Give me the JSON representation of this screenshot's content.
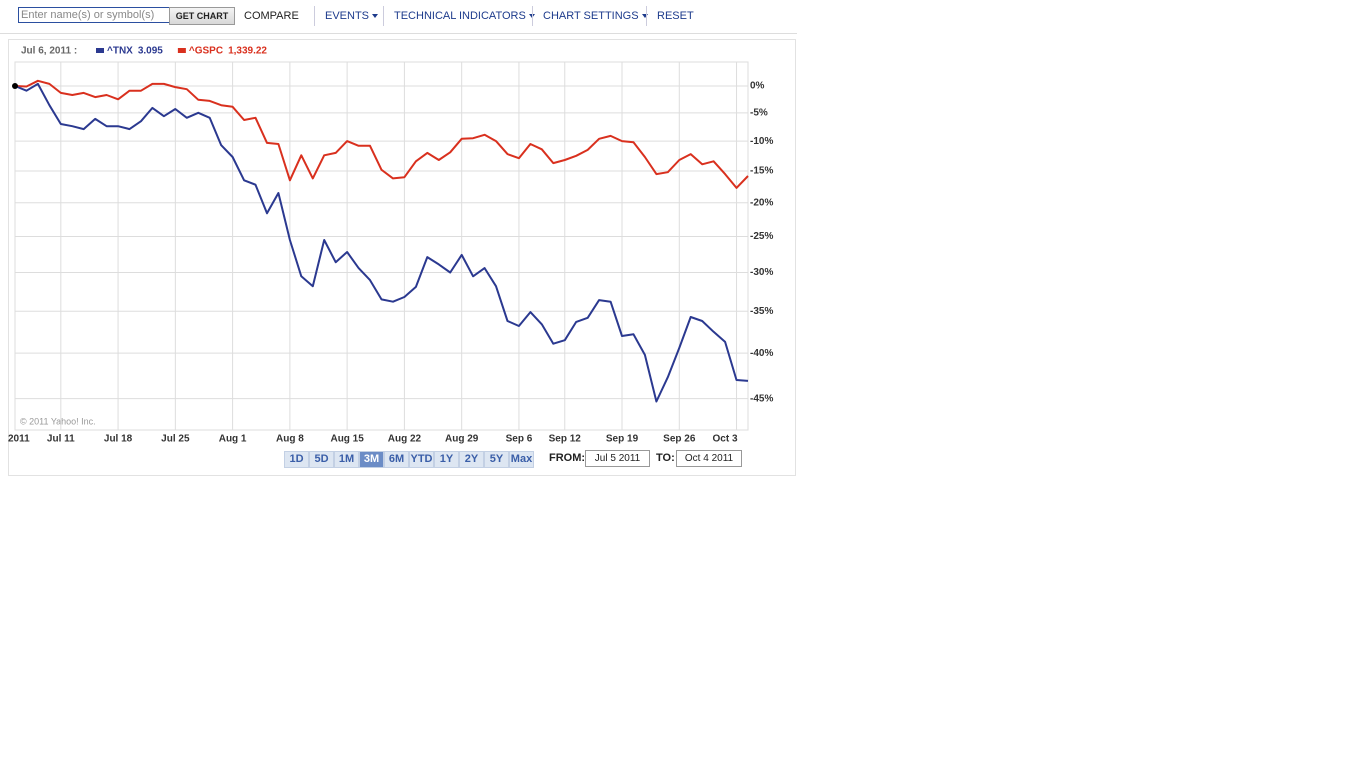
{
  "toolbar": {
    "search_placeholder": "Enter name(s) or symbol(s)",
    "get_chart": "GET CHART",
    "compare": "COMPARE",
    "menus": [
      "EVENTS",
      "TECHNICAL INDICATORS",
      "CHART SETTINGS"
    ],
    "reset": "RESET"
  },
  "chart_data": {
    "type": "line",
    "legend_date": "Jul 6, 2011 :",
    "categories": [
      "2011",
      null,
      null,
      null,
      "Jul 11",
      null,
      null,
      null,
      null,
      "Jul 18",
      null,
      null,
      null,
      null,
      "Jul 25",
      null,
      null,
      null,
      null,
      "Aug 1",
      null,
      null,
      null,
      null,
      "Aug 8",
      null,
      null,
      null,
      null,
      "Aug 15",
      null,
      null,
      null,
      null,
      "Aug 22",
      null,
      null,
      null,
      null,
      "Aug 29",
      null,
      null,
      null,
      null,
      "Sep 6",
      null,
      null,
      null,
      "Sep 12",
      null,
      null,
      null,
      null,
      "Sep 19",
      null,
      null,
      null,
      null,
      "Sep 26",
      null,
      null,
      null,
      null,
      "Oct 3",
      null
    ],
    "series": [
      {
        "name": "^TNX",
        "value_label": "3.095",
        "color": "#2b3990",
        "values": [
          0,
          -0.9,
          0.4,
          -3.6,
          -7.0,
          -7.4,
          -7.9,
          -6.1,
          -7.4,
          -7.4,
          -7.9,
          -6.5,
          -4.1,
          -5.6,
          -4.3,
          -5.9,
          -5.0,
          -5.9,
          -10.7,
          -12.7,
          -16.5,
          -17.2,
          -21.6,
          -18.5,
          -25.5,
          -30.5,
          -31.8,
          -25.5,
          -28.6,
          -27.2,
          -29.4,
          -31.0,
          -33.5,
          -33.8,
          -33.2,
          -31.9,
          -27.9,
          -28.9,
          -30.0,
          -27.6,
          -30.5,
          -29.4,
          -31.8,
          -36.2,
          -36.8,
          -35.1,
          -36.6,
          -38.9,
          -38.5,
          -36.3,
          -35.8,
          -33.6,
          -33.8,
          -38.0,
          -37.8,
          -40.2,
          -45.3,
          -42.7,
          -39.4,
          -35.7,
          -36.2,
          -37.5,
          -38.7,
          -43.0,
          -43.1
        ]
      },
      {
        "name": "^GSPC",
        "value_label": "1,339.22",
        "color": "#d9301e",
        "values": [
          0,
          -0.1,
          1.0,
          0.4,
          -1.3,
          -1.7,
          -1.3,
          -2.1,
          -1.7,
          -2.5,
          -0.9,
          -0.9,
          0.4,
          0.4,
          -0.2,
          -0.6,
          -2.6,
          -2.8,
          -3.6,
          -3.9,
          -6.3,
          -5.9,
          -10.3,
          -10.5,
          -16.5,
          -12.4,
          -16.2,
          -12.4,
          -12.0,
          -10.0,
          -10.8,
          -10.8,
          -14.8,
          -16.2,
          -16.0,
          -13.4,
          -12.0,
          -13.2,
          -11.9,
          -9.6,
          -9.5,
          -8.9,
          -10.0,
          -12.2,
          -12.9,
          -10.5,
          -11.4,
          -13.7,
          -13.2,
          -12.5,
          -11.5,
          -9.6,
          -9.1,
          -10.0,
          -10.2,
          -12.7,
          -15.5,
          -15.2,
          -13.2,
          -12.2,
          -13.9,
          -13.4,
          -15.5,
          -17.7,
          -15.8
        ]
      }
    ],
    "ylim": [
      -48.2,
      4.7
    ],
    "yticks": [
      {
        "value": 0,
        "label": "0%"
      },
      {
        "value": -5,
        "label": "-5%"
      },
      {
        "value": -10,
        "label": "-10%"
      },
      {
        "value": -15,
        "label": "-15%"
      },
      {
        "value": -20,
        "label": "-20%"
      },
      {
        "value": -25,
        "label": "-25%"
      },
      {
        "value": -30,
        "label": "-30%"
      },
      {
        "value": -35,
        "label": "-35%"
      },
      {
        "value": -40,
        "label": "-40%"
      },
      {
        "value": -45,
        "label": "-45%"
      }
    ],
    "log_scale": true,
    "grid": true,
    "copyright": "© 2011 Yahoo! Inc."
  },
  "range_selector": {
    "buttons": [
      "1D",
      "5D",
      "1M",
      "3M",
      "6M",
      "YTD",
      "1Y",
      "2Y",
      "5Y",
      "Max"
    ],
    "active_index": 3
  },
  "date_range": {
    "from_label": "FROM:",
    "from": "Jul 5 2011",
    "to_label": "TO:",
    "to": "Oct 4 2011"
  }
}
